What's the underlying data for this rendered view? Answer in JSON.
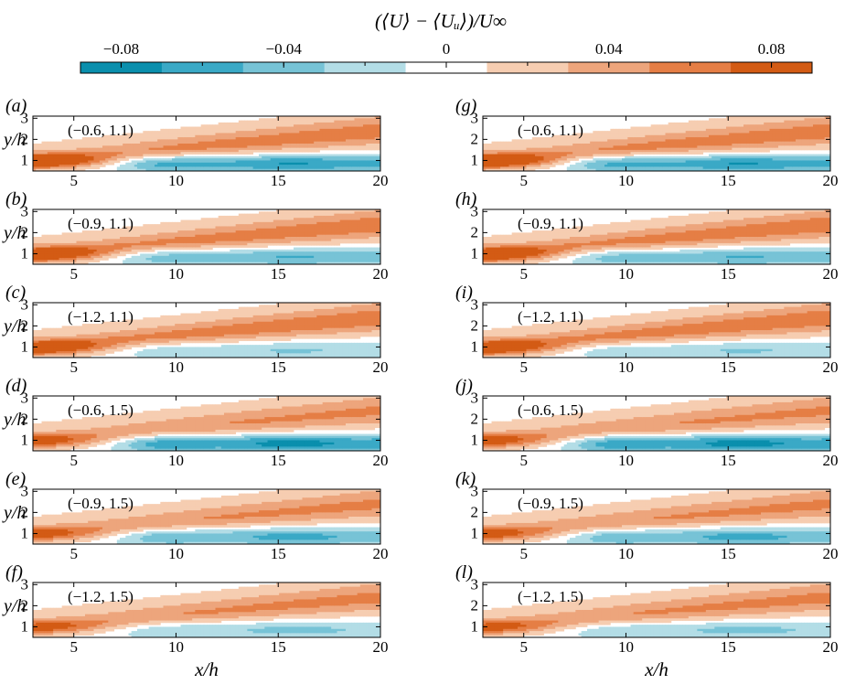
{
  "colorbar": {
    "label": "(⟨U⟩ − ⟨Uᵤ⟩)/U∞",
    "ticks": [
      {
        "value": -0.08,
        "label": "−0.08"
      },
      {
        "value": -0.04,
        "label": "−0.04"
      },
      {
        "value": 0,
        "label": "0"
      },
      {
        "value": 0.04,
        "label": "0.04"
      },
      {
        "value": 0.08,
        "label": "0.08"
      }
    ],
    "range": [
      -0.09,
      0.09
    ],
    "levels": 9,
    "colors": [
      "#0a8fad",
      "#3aa9c6",
      "#77c3d6",
      "#b3dde6",
      "#ffffff",
      "#f6cdb1",
      "#eda57c",
      "#e57e45",
      "#d35b14"
    ]
  },
  "chart_data": [
    {
      "type": "heatmap",
      "panel_label": "(a)",
      "annotation": "(−0.6, 1.1)",
      "params": {
        "a": -0.6,
        "b": 1.1
      },
      "column": "left",
      "row": 0,
      "show_ylabel": true,
      "xlim": [
        3,
        20
      ],
      "ylim": [
        0.5,
        3.1
      ],
      "xticks": [
        5,
        10,
        15,
        20
      ],
      "yticks": [
        1,
        2,
        3
      ],
      "xlabel": "",
      "ylabel": "y/h"
    },
    {
      "type": "heatmap",
      "panel_label": "(b)",
      "annotation": "(−0.9, 1.1)",
      "params": {
        "a": -0.9,
        "b": 1.1
      },
      "column": "left",
      "row": 1,
      "show_ylabel": true,
      "xlim": [
        3,
        20
      ],
      "ylim": [
        0.5,
        3.1
      ],
      "xticks": [
        5,
        10,
        15,
        20
      ],
      "yticks": [
        1,
        2,
        3
      ],
      "xlabel": "",
      "ylabel": "y/h"
    },
    {
      "type": "heatmap",
      "panel_label": "(c)",
      "annotation": "(−1.2, 1.1)",
      "params": {
        "a": -1.2,
        "b": 1.1
      },
      "column": "left",
      "row": 2,
      "show_ylabel": true,
      "xlim": [
        3,
        20
      ],
      "ylim": [
        0.5,
        3.1
      ],
      "xticks": [
        5,
        10,
        15,
        20
      ],
      "yticks": [
        1,
        2,
        3
      ],
      "xlabel": "",
      "ylabel": "y/h"
    },
    {
      "type": "heatmap",
      "panel_label": "(d)",
      "annotation": "(−0.6, 1.5)",
      "params": {
        "a": -0.6,
        "b": 1.5
      },
      "column": "left",
      "row": 3,
      "show_ylabel": true,
      "xlim": [
        3,
        20
      ],
      "ylim": [
        0.5,
        3.1
      ],
      "xticks": [
        5,
        10,
        15,
        20
      ],
      "yticks": [
        1,
        2,
        3
      ],
      "xlabel": "",
      "ylabel": "y/h"
    },
    {
      "type": "heatmap",
      "panel_label": "(e)",
      "annotation": "(−0.9, 1.5)",
      "params": {
        "a": -0.9,
        "b": 1.5
      },
      "column": "left",
      "row": 4,
      "show_ylabel": true,
      "xlim": [
        3,
        20
      ],
      "ylim": [
        0.5,
        3.1
      ],
      "xticks": [
        5,
        10,
        15,
        20
      ],
      "yticks": [
        1,
        2,
        3
      ],
      "xlabel": "",
      "ylabel": "y/h"
    },
    {
      "type": "heatmap",
      "panel_label": "(f)",
      "annotation": "(−1.2, 1.5)",
      "params": {
        "a": -1.2,
        "b": 1.5
      },
      "column": "left",
      "row": 5,
      "show_ylabel": true,
      "xlim": [
        3,
        20
      ],
      "ylim": [
        0.5,
        3.1
      ],
      "xticks": [
        5,
        10,
        15,
        20
      ],
      "yticks": [
        1,
        2,
        3
      ],
      "xlabel": "x/h",
      "ylabel": "y/h"
    },
    {
      "type": "heatmap",
      "panel_label": "(g)",
      "annotation": "(−0.6, 1.1)",
      "params": {
        "a": -0.6,
        "b": 1.1
      },
      "column": "right",
      "row": 0,
      "show_ylabel": false,
      "xlim": [
        3,
        20
      ],
      "ylim": [
        0.5,
        3.1
      ],
      "xticks": [
        5,
        10,
        15,
        20
      ],
      "yticks": [
        1,
        2,
        3
      ],
      "xlabel": "",
      "ylabel": ""
    },
    {
      "type": "heatmap",
      "panel_label": "(h)",
      "annotation": "(−0.9, 1.1)",
      "params": {
        "a": -0.9,
        "b": 1.1
      },
      "column": "right",
      "row": 1,
      "show_ylabel": false,
      "xlim": [
        3,
        20
      ],
      "ylim": [
        0.5,
        3.1
      ],
      "xticks": [
        5,
        10,
        15,
        20
      ],
      "yticks": [
        1,
        2,
        3
      ],
      "xlabel": "",
      "ylabel": ""
    },
    {
      "type": "heatmap",
      "panel_label": "(i)",
      "annotation": "(−1.2, 1.1)",
      "params": {
        "a": -1.2,
        "b": 1.1
      },
      "column": "right",
      "row": 2,
      "show_ylabel": false,
      "xlim": [
        3,
        20
      ],
      "ylim": [
        0.5,
        3.1
      ],
      "xticks": [
        5,
        10,
        15,
        20
      ],
      "yticks": [
        1,
        2,
        3
      ],
      "xlabel": "",
      "ylabel": ""
    },
    {
      "type": "heatmap",
      "panel_label": "(j)",
      "annotation": "(−0.6, 1.5)",
      "params": {
        "a": -0.6,
        "b": 1.5
      },
      "column": "right",
      "row": 3,
      "show_ylabel": false,
      "xlim": [
        3,
        20
      ],
      "ylim": [
        0.5,
        3.1
      ],
      "xticks": [
        5,
        10,
        15,
        20
      ],
      "yticks": [
        1,
        2,
        3
      ],
      "xlabel": "",
      "ylabel": ""
    },
    {
      "type": "heatmap",
      "panel_label": "(k)",
      "annotation": "(−0.9, 1.5)",
      "params": {
        "a": -0.9,
        "b": 1.5
      },
      "column": "right",
      "row": 4,
      "show_ylabel": false,
      "xlim": [
        3,
        20
      ],
      "ylim": [
        0.5,
        3.1
      ],
      "xticks": [
        5,
        10,
        15,
        20
      ],
      "yticks": [
        1,
        2,
        3
      ],
      "xlabel": "",
      "ylabel": ""
    },
    {
      "type": "heatmap",
      "panel_label": "(l)",
      "annotation": "(−1.2, 1.5)",
      "params": {
        "a": -1.2,
        "b": 1.5
      },
      "column": "right",
      "row": 5,
      "show_ylabel": false,
      "xlim": [
        3,
        20
      ],
      "ylim": [
        0.5,
        3.1
      ],
      "xticks": [
        5,
        10,
        15,
        20
      ],
      "yticks": [
        1,
        2,
        3
      ],
      "xlabel": "x/h",
      "ylabel": ""
    }
  ]
}
